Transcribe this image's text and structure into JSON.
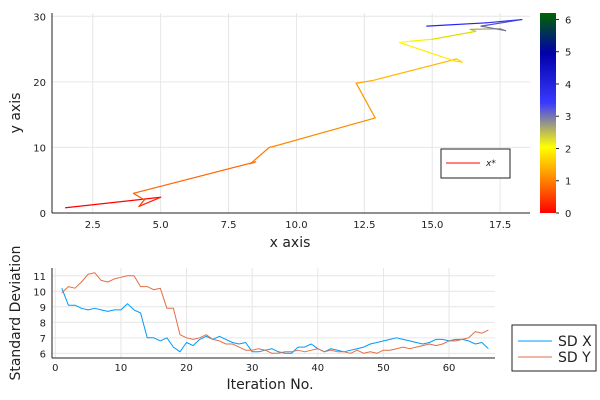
{
  "chart_data": [
    {
      "type": "line",
      "xlabel": "x axis",
      "ylabel": "y axis",
      "xlim": [
        1.0,
        18.6
      ],
      "ylim": [
        0,
        30.5
      ],
      "xticks": [
        "2.5",
        "5.0",
        "7.5",
        "10.0",
        "12.5",
        "15.0",
        "17.5"
      ],
      "yticks": [
        "0",
        "10",
        "20",
        "30"
      ],
      "grid": true,
      "legend": {
        "position": "bottom-right",
        "entries": [
          "x*"
        ]
      },
      "colorbar": {
        "range": [
          0,
          6.2
        ],
        "ticks": [
          "0",
          "1",
          "2",
          "3",
          "4",
          "5",
          "6"
        ],
        "colors": [
          "#ff0000",
          "#ff7f00",
          "#ffff00",
          "#3a3aff",
          "#0000aa",
          "#006400"
        ]
      },
      "series": [
        {
          "colors": [
            "#ff0000",
            "#ff2200",
            "#ff4400",
            "#ff5500",
            "#ff6600",
            "#ff7000",
            "#ff7700",
            "#ff8000",
            "#ff8a00",
            "#ff9500",
            "#ffa000",
            "#ffaa00",
            "#ffb500",
            "#ffcc00",
            "#ffdd00",
            "#ffee00",
            "#ffff00",
            "#f5f200",
            "#e0e000",
            "#cccc33",
            "#aaaa66",
            "#888888",
            "#777799",
            "#5555cc",
            "#3333ee",
            "#2222ff",
            "#1111cc"
          ],
          "x": [
            1.5,
            5.0,
            4.2,
            4.4,
            4.0,
            8.5,
            8.3,
            9.0,
            9.2,
            12.9,
            12.2,
            12.5,
            12.8,
            15.9,
            16.1,
            15.8,
            13.8,
            14.2,
            15.0,
            16.6,
            16.4,
            17.5,
            17.7,
            16.8,
            18.3,
            17.0,
            14.8
          ],
          "y": [
            0.8,
            2.4,
            1.0,
            2.0,
            3.0,
            7.8,
            7.5,
            10.0,
            10.2,
            14.5,
            19.8,
            20.0,
            20.2,
            23.5,
            23.0,
            23.2,
            26.0,
            26.2,
            26.5,
            27.7,
            28.0,
            28.1,
            27.8,
            28.5,
            29.5,
            29.0,
            28.5
          ]
        }
      ]
    },
    {
      "type": "line",
      "xlabel": "Iteration No.",
      "ylabel": "Standard Deviation",
      "xlim": [
        -0.5,
        67
      ],
      "ylim": [
        5.7,
        11.5
      ],
      "xticks": [
        "0",
        "10",
        "20",
        "30",
        "40",
        "50",
        "60"
      ],
      "yticks": [
        "6",
        "7",
        "8",
        "9",
        "10",
        "11"
      ],
      "grid": true,
      "legend": {
        "position": "outside-right",
        "entries": [
          "SD X",
          "SD Y"
        ]
      },
      "series": [
        {
          "name": "SD X",
          "color": "#009af9",
          "x": [
            1,
            2,
            3,
            4,
            5,
            6,
            7,
            8,
            9,
            10,
            11,
            12,
            13,
            14,
            15,
            16,
            17,
            18,
            19,
            20,
            21,
            22,
            23,
            24,
            25,
            26,
            27,
            28,
            29,
            30,
            31,
            32,
            33,
            34,
            35,
            36,
            37,
            38,
            39,
            40,
            41,
            42,
            43,
            44,
            45,
            46,
            47,
            48,
            49,
            50,
            51,
            52,
            53,
            54,
            55,
            56,
            57,
            58,
            59,
            60,
            61,
            62,
            63,
            64,
            65,
            66
          ],
          "values": [
            10.2,
            9.1,
            9.1,
            8.9,
            8.8,
            8.9,
            8.8,
            8.7,
            8.8,
            8.8,
            9.2,
            8.8,
            8.6,
            7.0,
            7.0,
            6.8,
            7.0,
            6.4,
            6.1,
            6.7,
            6.5,
            6.9,
            7.1,
            6.9,
            7.1,
            6.9,
            6.7,
            6.6,
            6.7,
            6.1,
            6.1,
            6.2,
            6.3,
            6.1,
            6.0,
            6.0,
            6.4,
            6.4,
            6.6,
            6.3,
            6.1,
            6.3,
            6.2,
            6.1,
            6.2,
            6.3,
            6.4,
            6.6,
            6.7,
            6.8,
            6.9,
            7.0,
            6.9,
            6.8,
            6.7,
            6.6,
            6.7,
            6.9,
            6.9,
            6.8,
            6.9,
            6.9,
            6.8,
            6.6,
            6.7,
            6.3
          ]
        },
        {
          "name": "SD Y",
          "color": "#e26f46",
          "x": [
            1,
            2,
            3,
            4,
            5,
            6,
            7,
            8,
            9,
            10,
            11,
            12,
            13,
            14,
            15,
            16,
            17,
            18,
            19,
            20,
            21,
            22,
            23,
            24,
            25,
            26,
            27,
            28,
            29,
            30,
            31,
            32,
            33,
            34,
            35,
            36,
            37,
            38,
            39,
            40,
            41,
            42,
            43,
            44,
            45,
            46,
            47,
            48,
            49,
            50,
            51,
            52,
            53,
            54,
            55,
            56,
            57,
            58,
            59,
            60,
            61,
            62,
            63,
            64,
            65,
            66
          ],
          "values": [
            9.9,
            10.3,
            10.2,
            10.6,
            11.1,
            11.2,
            10.7,
            10.6,
            10.8,
            10.9,
            11.0,
            11.0,
            10.3,
            10.3,
            10.1,
            10.2,
            8.9,
            8.9,
            7.2,
            7.0,
            6.9,
            7.0,
            7.2,
            6.9,
            6.8,
            6.6,
            6.6,
            6.4,
            6.2,
            6.2,
            6.3,
            6.2,
            6.0,
            6.0,
            6.1,
            6.1,
            6.2,
            6.1,
            6.2,
            6.3,
            6.1,
            6.2,
            6.1,
            6.1,
            6.0,
            6.2,
            6.0,
            6.1,
            6.0,
            6.2,
            6.2,
            6.3,
            6.4,
            6.3,
            6.4,
            6.5,
            6.6,
            6.5,
            6.6,
            6.8,
            6.8,
            6.9,
            7.0,
            7.4,
            7.3,
            7.5
          ]
        }
      ]
    }
  ]
}
